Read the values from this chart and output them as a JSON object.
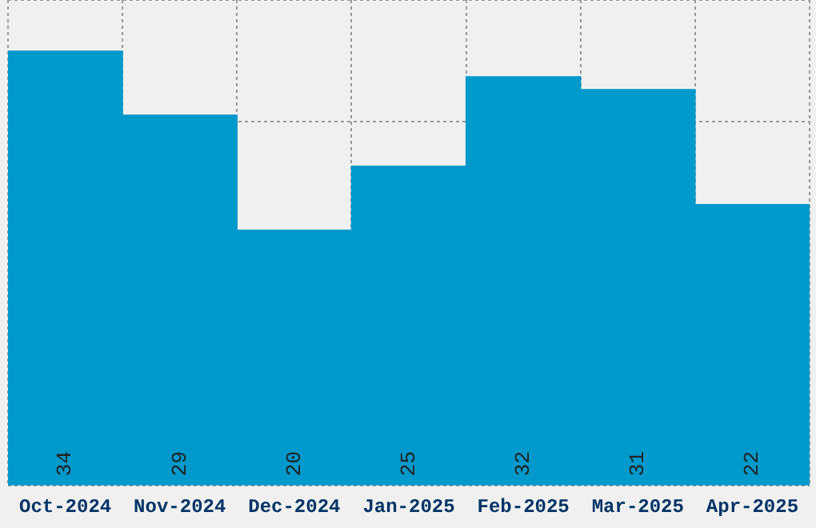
{
  "chart_data": {
    "type": "bar",
    "categories": [
      "Oct-2024",
      "Nov-2024",
      "Dec-2024",
      "Jan-2025",
      "Feb-2025",
      "Mar-2025",
      "Apr-2025"
    ],
    "values": [
      34,
      29,
      20,
      25,
      32,
      31,
      22
    ],
    "color": "#0099cc",
    "data_labels": true,
    "grid": true,
    "tick_labels": "x",
    "ylim": [
      0,
      38
    ]
  }
}
